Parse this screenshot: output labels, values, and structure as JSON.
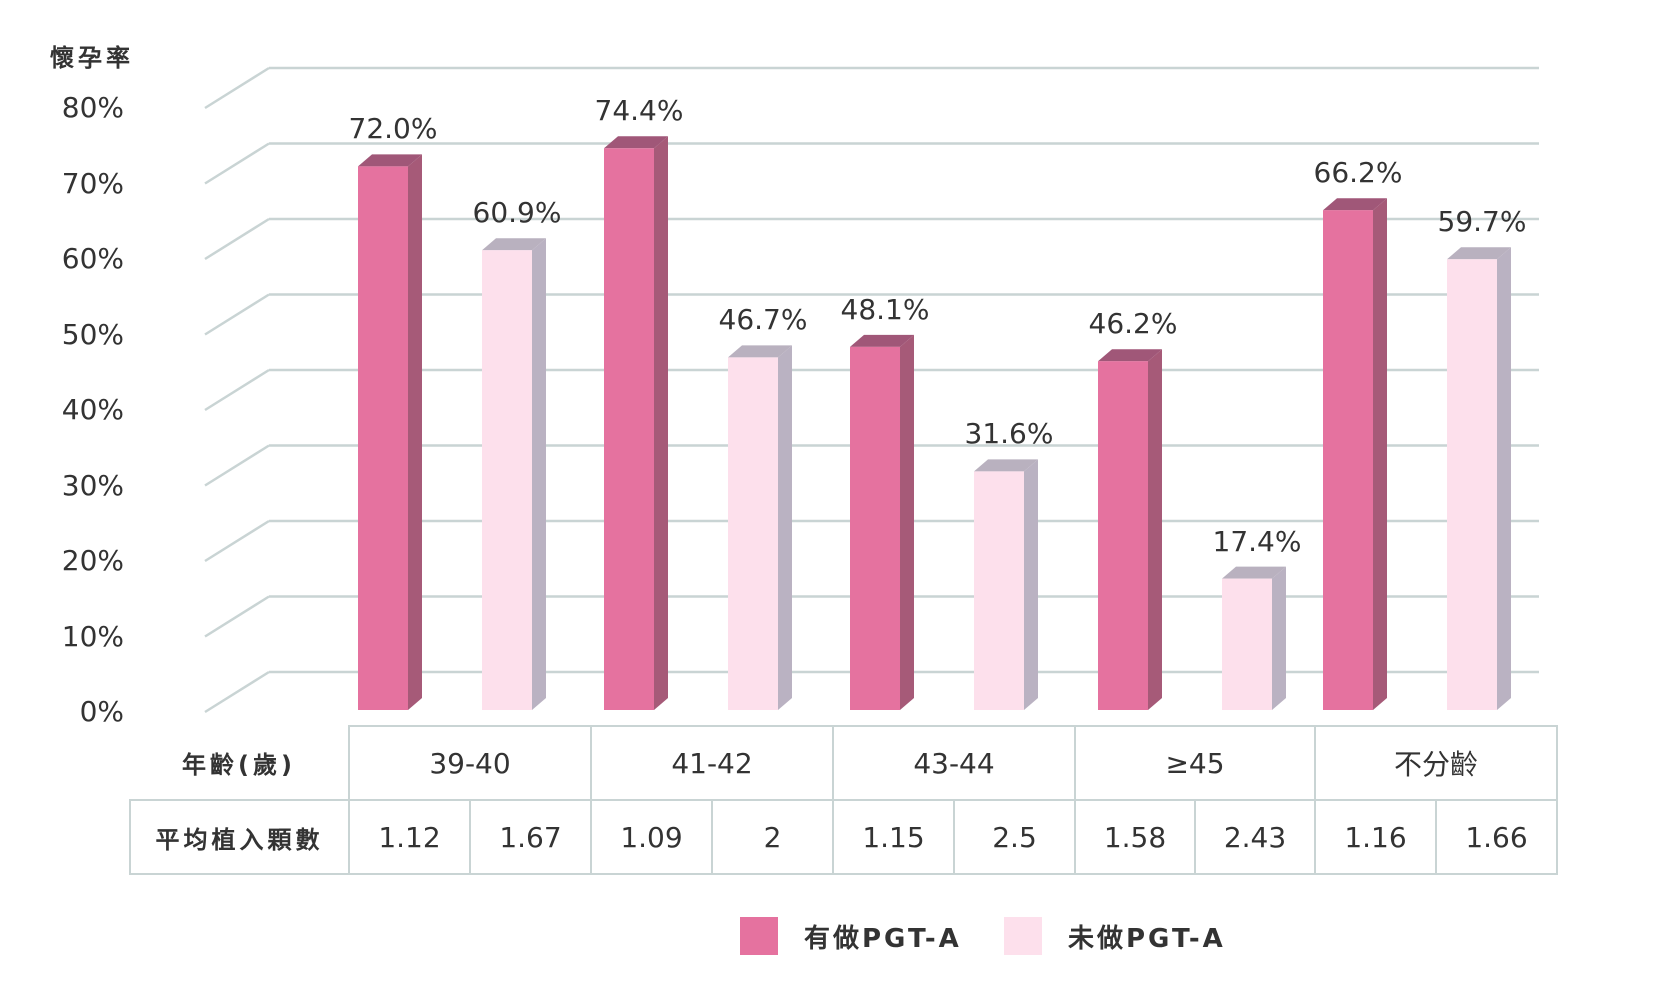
{
  "chart_data": {
    "type": "bar",
    "ylabel": "懷孕率",
    "ylim": [
      0,
      80
    ],
    "yticks": [
      "0%",
      "10%",
      "20%",
      "30%",
      "40%",
      "50%",
      "60%",
      "70%",
      "80%"
    ],
    "categories": [
      "39-40",
      "41-42",
      "43-44",
      "≥45",
      "不分齡"
    ],
    "series": [
      {
        "name": "有做PGT-A",
        "values": [
          72.0,
          74.4,
          48.1,
          46.2,
          66.2
        ],
        "labels": [
          "72.0%",
          "74.4%",
          "48.1%",
          "46.2%",
          "66.2%"
        ]
      },
      {
        "name": "未做PGT-A",
        "values": [
          60.9,
          46.7,
          31.6,
          17.4,
          59.7
        ],
        "labels": [
          "60.9%",
          "46.7%",
          "31.6%",
          "17.4%",
          "59.7%"
        ]
      }
    ],
    "grid": true,
    "legend": "bottom",
    "colors": {
      "series1_front": "#e5729f",
      "series1_side": "#a65a78",
      "series2_front": "#fde0ec",
      "series2_side": "#bab2c2",
      "grid": "#c9d4d4"
    }
  },
  "table": {
    "row1_header": "年齡(歲)",
    "row2_header": "平均植入顆數",
    "age_groups": [
      "39-40",
      "41-42",
      "43-44",
      "≥45",
      "不分齡"
    ],
    "avg_implanted": [
      "1.12",
      "1.67",
      "1.09",
      "2",
      "1.15",
      "2.5",
      "1.58",
      "2.43",
      "1.16",
      "1.66"
    ]
  },
  "legend": {
    "item1": "有做PGT-A",
    "item2": "未做PGT-A"
  }
}
